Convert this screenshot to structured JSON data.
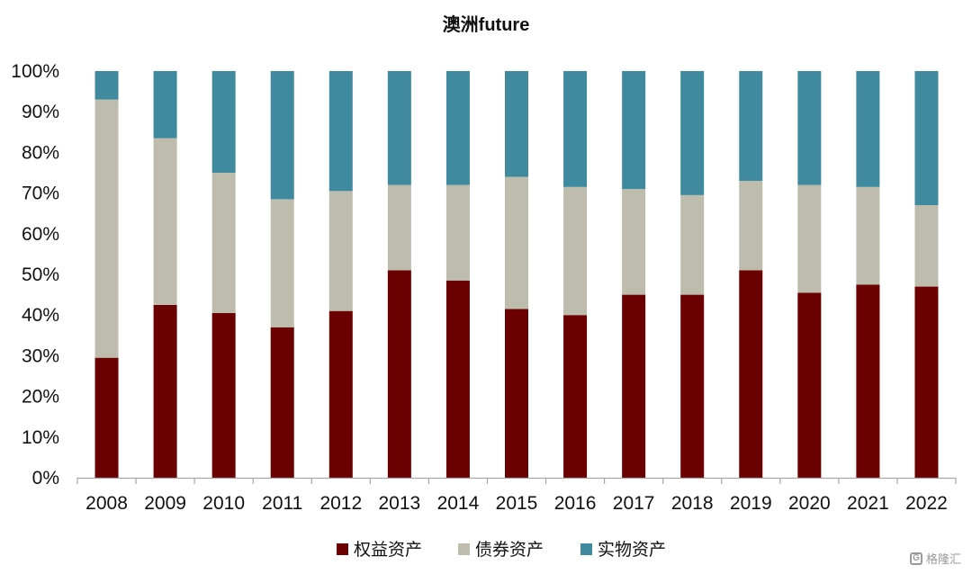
{
  "chart_data": {
    "type": "bar",
    "stacked": true,
    "title": "澳洲future",
    "xlabel": "",
    "ylabel": "",
    "ylim": [
      0,
      100
    ],
    "y_ticks": [
      "0%",
      "10%",
      "20%",
      "30%",
      "40%",
      "50%",
      "60%",
      "70%",
      "80%",
      "90%",
      "100%"
    ],
    "categories": [
      "2008",
      "2009",
      "2010",
      "2011",
      "2012",
      "2013",
      "2014",
      "2015",
      "2016",
      "2017",
      "2018",
      "2019",
      "2020",
      "2021",
      "2022"
    ],
    "series": [
      {
        "name": "权益资产",
        "color": "#6b0000",
        "values": [
          29.5,
          42.5,
          40.5,
          37,
          41,
          51,
          48.5,
          41.5,
          40,
          45,
          45,
          51,
          45.5,
          47.5,
          47
        ]
      },
      {
        "name": "债券资产",
        "color": "#bdbcad",
        "values": [
          63.5,
          41,
          34.5,
          31.5,
          29.5,
          21,
          23.5,
          32.5,
          31.5,
          26,
          24.5,
          22,
          26.5,
          24,
          20
        ]
      },
      {
        "name": "实物资产",
        "color": "#3f8a9e",
        "values": [
          7,
          16.5,
          25,
          31.5,
          29.5,
          28,
          28,
          26,
          28.5,
          29,
          30.5,
          27,
          28,
          28.5,
          33
        ]
      }
    ],
    "grid": false,
    "legend_position": "bottom"
  },
  "watermark": {
    "text": "格隆汇",
    "icon": "G"
  }
}
